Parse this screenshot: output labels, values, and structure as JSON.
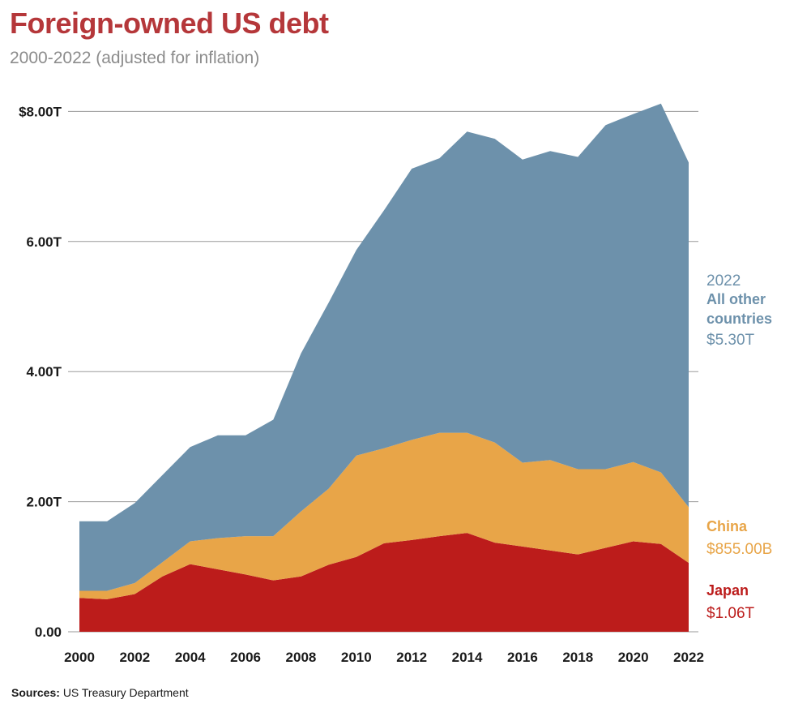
{
  "header": {
    "title": "Foreign-owned US debt",
    "subtitle": "2000-2022 (adjusted for inflation)"
  },
  "footer": {
    "source_label": "Sources:",
    "source_text": "US Treasury Department"
  },
  "colors": {
    "japan": "#bc1c1b",
    "china": "#e8a548",
    "others": "#6d91ab",
    "title": "#b5373a",
    "grid": "#9a9a9a"
  },
  "chart_data": {
    "type": "area",
    "stacked": true,
    "x": [
      2000,
      2001,
      2002,
      2003,
      2004,
      2005,
      2006,
      2007,
      2008,
      2009,
      2010,
      2011,
      2012,
      2013,
      2014,
      2015,
      2016,
      2017,
      2018,
      2019,
      2020,
      2021,
      2022
    ],
    "x_ticks": [
      "2000",
      "2002",
      "2004",
      "2006",
      "2008",
      "2010",
      "2012",
      "2014",
      "2016",
      "2018",
      "2020",
      "2022"
    ],
    "y_ticks": [
      "0.00",
      "2.00T",
      "4.00T",
      "6.00T",
      "$8.00T"
    ],
    "y_tick_values": [
      0,
      2,
      4,
      6,
      8
    ],
    "ylim": [
      0,
      8.2
    ],
    "units": "trillions USD",
    "grid": true,
    "series": [
      {
        "name": "Japan",
        "values": [
          0.52,
          0.5,
          0.58,
          0.85,
          1.04,
          0.96,
          0.88,
          0.79,
          0.85,
          1.03,
          1.15,
          1.36,
          1.41,
          1.47,
          1.52,
          1.37,
          1.31,
          1.25,
          1.19,
          1.29,
          1.39,
          1.35,
          1.06
        ]
      },
      {
        "name": "China",
        "values": [
          0.11,
          0.13,
          0.17,
          0.22,
          0.35,
          0.48,
          0.59,
          0.68,
          1.0,
          1.17,
          1.56,
          1.46,
          1.54,
          1.59,
          1.54,
          1.54,
          1.29,
          1.39,
          1.31,
          1.21,
          1.22,
          1.1,
          0.855
        ]
      },
      {
        "name": "All other countries",
        "values": [
          1.07,
          1.07,
          1.23,
          1.34,
          1.45,
          1.58,
          1.55,
          1.79,
          2.43,
          2.86,
          3.16,
          3.66,
          4.17,
          4.22,
          4.63,
          4.67,
          4.66,
          4.75,
          4.8,
          5.29,
          5.35,
          5.67,
          5.3
        ]
      }
    ],
    "end_labels": {
      "others": {
        "year": "2022",
        "name_line1": "All other",
        "name_line2": "countries",
        "value": "$5.30T"
      },
      "china": {
        "name": "China",
        "value": "$855.00B"
      },
      "japan": {
        "name": "Japan",
        "value": "$1.06T"
      }
    }
  }
}
